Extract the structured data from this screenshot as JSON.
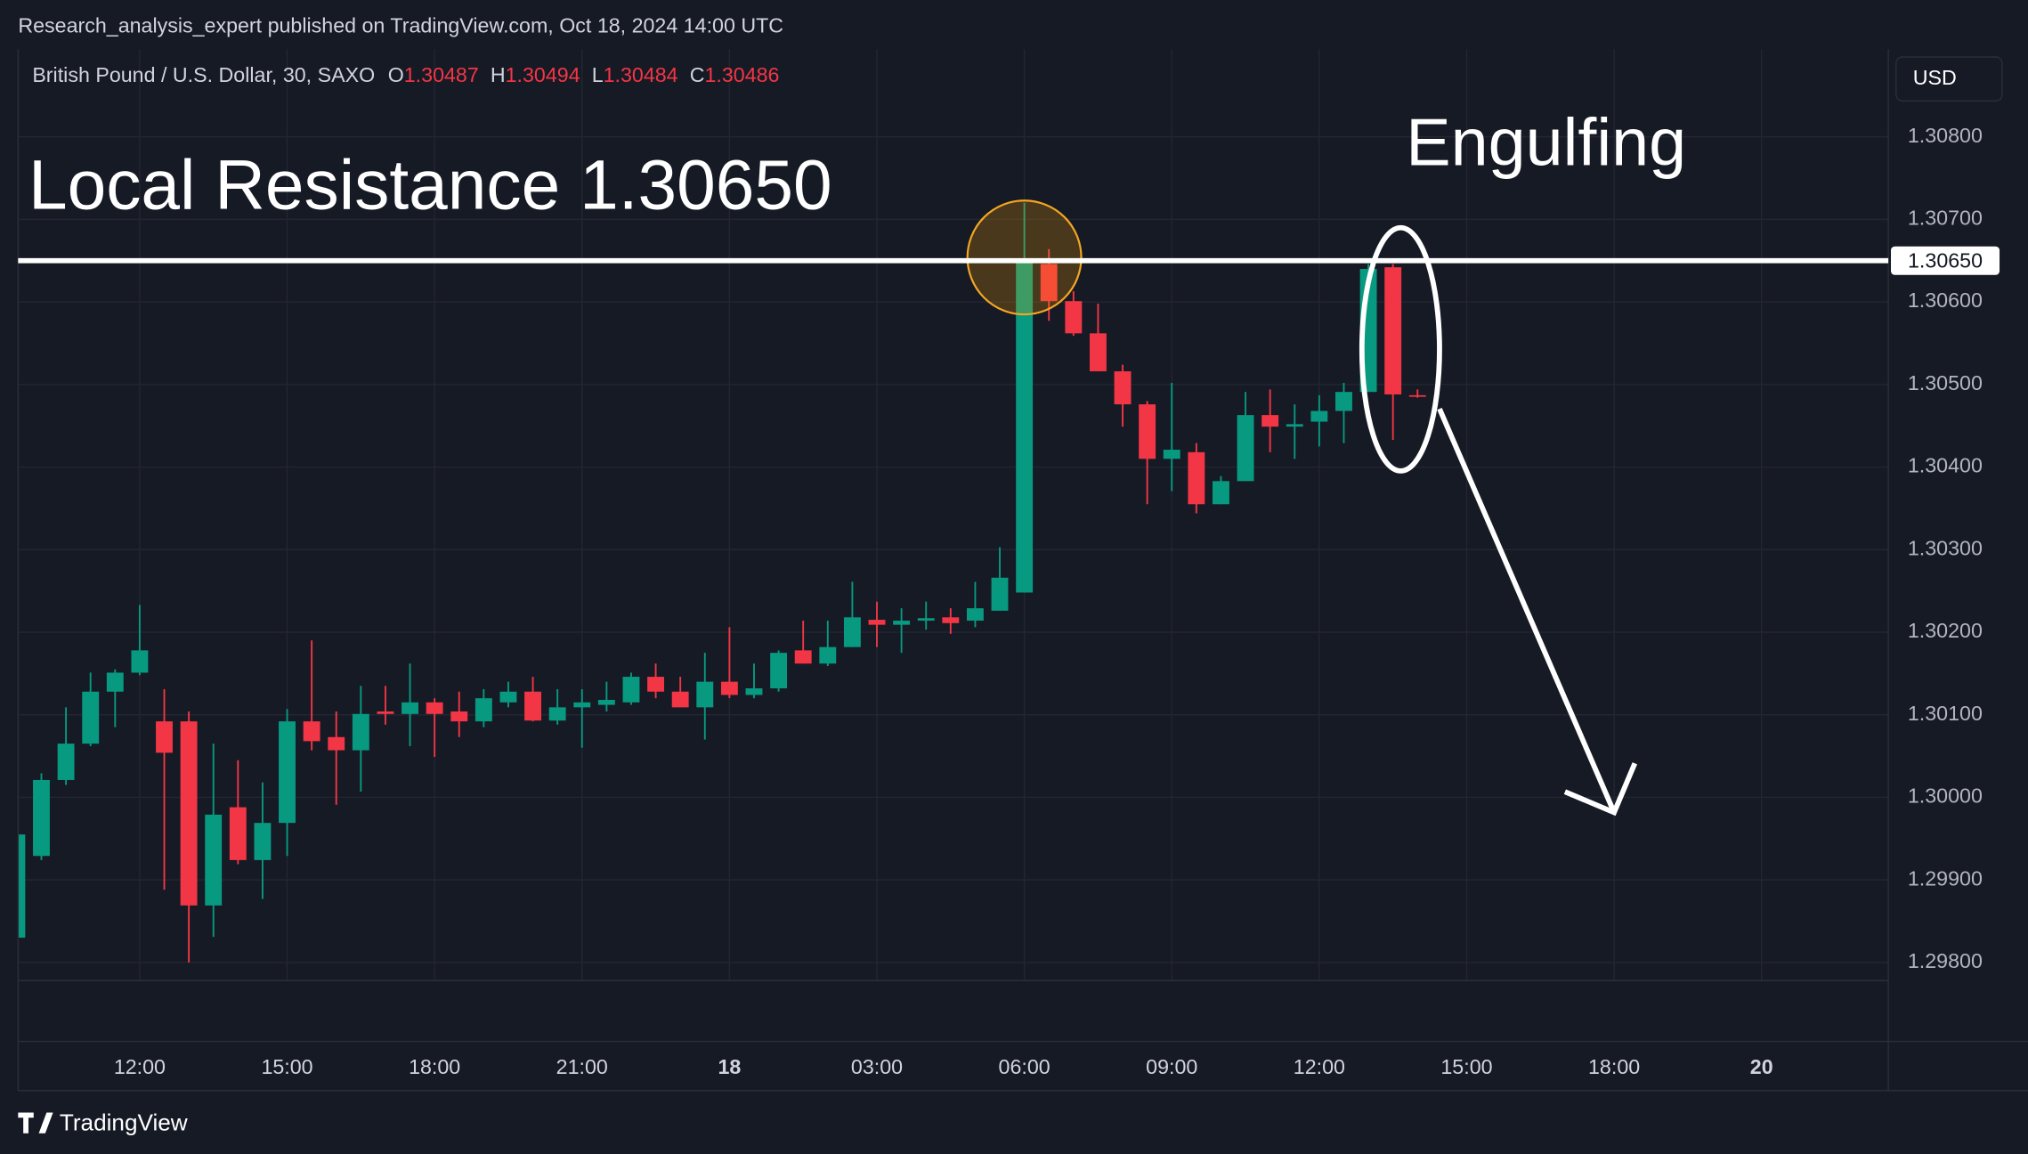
{
  "publish_info": "Research_analysis_expert published on TradingView.com, Oct 18, 2024 14:00 UTC",
  "chart_data": {
    "type": "candlestick",
    "symbol": "British Pound / U.S. Dollar, 30, SAXO",
    "ohlc_labels": [
      "O",
      "H",
      "L",
      "C"
    ],
    "currency": "USD",
    "annotations": [
      "Local Resistance 1.30650",
      "Engulfing"
    ],
    "resistance": {
      "value": 1.3065,
      "label": "1.30650"
    },
    "up_color": "#089981",
    "down_color": "#f23645",
    "categories": [
      null,
      null,
      null,
      null,
      null,
      "12:00",
      null,
      null,
      null,
      null,
      null,
      "15:00",
      null,
      null,
      null,
      null,
      null,
      "18:00",
      null,
      null,
      null,
      null,
      null,
      "21:00",
      null,
      null,
      null,
      null,
      null,
      "18",
      null,
      null,
      null,
      null,
      null,
      "03:00",
      null,
      null,
      null,
      null,
      null,
      "06:00",
      null,
      null,
      null,
      null,
      null,
      "09:00",
      null,
      null,
      null,
      null,
      null,
      "12:00",
      null,
      null,
      null,
      null
    ],
    "future_categories": [
      "15:00",
      "18:00",
      "20"
    ],
    "open": [
      1.2983,
      1.29929,
      1.30021,
      1.30065,
      1.30128,
      1.30151,
      1.30092,
      1.30092,
      1.29869,
      1.29988,
      1.29924,
      1.29969,
      1.30092,
      1.30073,
      1.30057,
      1.30104,
      1.30101,
      1.30115,
      1.30104,
      1.30092,
      1.30115,
      1.30128,
      1.30093,
      1.30109,
      1.30112,
      1.30115,
      1.30146,
      1.30128,
      1.30109,
      1.3014,
      1.30124,
      1.30132,
      1.30178,
      1.30162,
      1.30182,
      1.30215,
      1.30209,
      1.30214,
      1.30218,
      1.30214,
      1.30226,
      1.30248,
      1.30646,
      1.30601,
      1.30562,
      1.30516,
      1.30476,
      1.3041,
      1.30418,
      1.30355,
      1.30383,
      1.30463,
      1.30449,
      1.30455,
      1.30468,
      1.30491,
      1.30642,
      1.30487
    ],
    "high": [
      1.29965,
      1.30029,
      1.30109,
      1.30151,
      1.30155,
      1.30233,
      1.30131,
      1.30104,
      1.30065,
      1.30045,
      1.30018,
      1.30107,
      1.3019,
      1.30104,
      1.30135,
      1.30135,
      1.30162,
      1.3012,
      1.30128,
      1.30131,
      1.3014,
      1.30146,
      1.30131,
      1.30131,
      1.3014,
      1.30151,
      1.30162,
      1.30146,
      1.30175,
      1.30206,
      1.30162,
      1.30178,
      1.30214,
      1.30214,
      1.30261,
      1.30237,
      1.30229,
      1.30237,
      1.30229,
      1.30261,
      1.30303,
      1.3072,
      1.30664,
      1.30613,
      1.30598,
      1.30524,
      1.3048,
      1.30502,
      1.30429,
      1.30389,
      1.30491,
      1.30494,
      1.30476,
      1.30487,
      1.30502,
      1.30646,
      1.30646,
      1.30494
    ],
    "low": [
      1.29825,
      1.29924,
      1.30015,
      1.30062,
      1.30085,
      1.30148,
      1.29888,
      1.298,
      1.29831,
      1.29919,
      1.29877,
      1.29929,
      1.30057,
      1.29991,
      1.30007,
      1.30088,
      1.30062,
      1.30049,
      1.30073,
      1.30085,
      1.30109,
      1.30092,
      1.30088,
      1.3006,
      1.30104,
      1.30112,
      1.3012,
      1.30109,
      1.3007,
      1.3012,
      1.3012,
      1.30128,
      1.30162,
      1.30159,
      1.30182,
      1.30182,
      1.30175,
      1.30203,
      1.30198,
      1.30206,
      1.30226,
      1.30248,
      1.30577,
      1.30559,
      1.30516,
      1.30449,
      1.30355,
      1.30371,
      1.30344,
      1.30355,
      1.30383,
      1.30418,
      1.3041,
      1.30425,
      1.30429,
      1.30491,
      1.30433,
      1.30484
    ],
    "close": [
      1.29955,
      1.30021,
      1.30065,
      1.30128,
      1.30151,
      1.30178,
      1.30054,
      1.29869,
      1.29979,
      1.29924,
      1.29969,
      1.30092,
      1.30068,
      1.30057,
      1.30101,
      1.30101,
      1.30115,
      1.30101,
      1.30092,
      1.3012,
      1.30128,
      1.30093,
      1.30109,
      1.30115,
      1.30118,
      1.30146,
      1.30128,
      1.30109,
      1.3014,
      1.30124,
      1.30132,
      1.30175,
      1.30162,
      1.30182,
      1.30218,
      1.30209,
      1.30214,
      1.30217,
      1.30211,
      1.30229,
      1.30266,
      1.3065,
      1.30601,
      1.30562,
      1.30516,
      1.30476,
      1.3041,
      1.30421,
      1.30355,
      1.30383,
      1.30463,
      1.30449,
      1.30452,
      1.30468,
      1.30491,
      1.3064,
      1.30488,
      1.30486
    ],
    "ylim": [
      1.29778,
      1.30903
    ],
    "yticks": [
      {
        "value": 1.298,
        "label": "1.29800"
      },
      {
        "value": 1.299,
        "label": "1.29900"
      },
      {
        "value": 1.3,
        "label": "1.30000"
      },
      {
        "value": 1.301,
        "label": "1.30100"
      },
      {
        "value": 1.302,
        "label": "1.30200"
      },
      {
        "value": 1.303,
        "label": "1.30300"
      },
      {
        "value": 1.304,
        "label": "1.30400"
      },
      {
        "value": 1.305,
        "label": "1.30500"
      },
      {
        "value": 1.306,
        "label": "1.30600"
      },
      {
        "value": 1.307,
        "label": "1.30700"
      },
      {
        "value": 1.308,
        "label": "1.30800"
      }
    ],
    "grid": true
  },
  "footer": {
    "logo": "TradingView"
  }
}
